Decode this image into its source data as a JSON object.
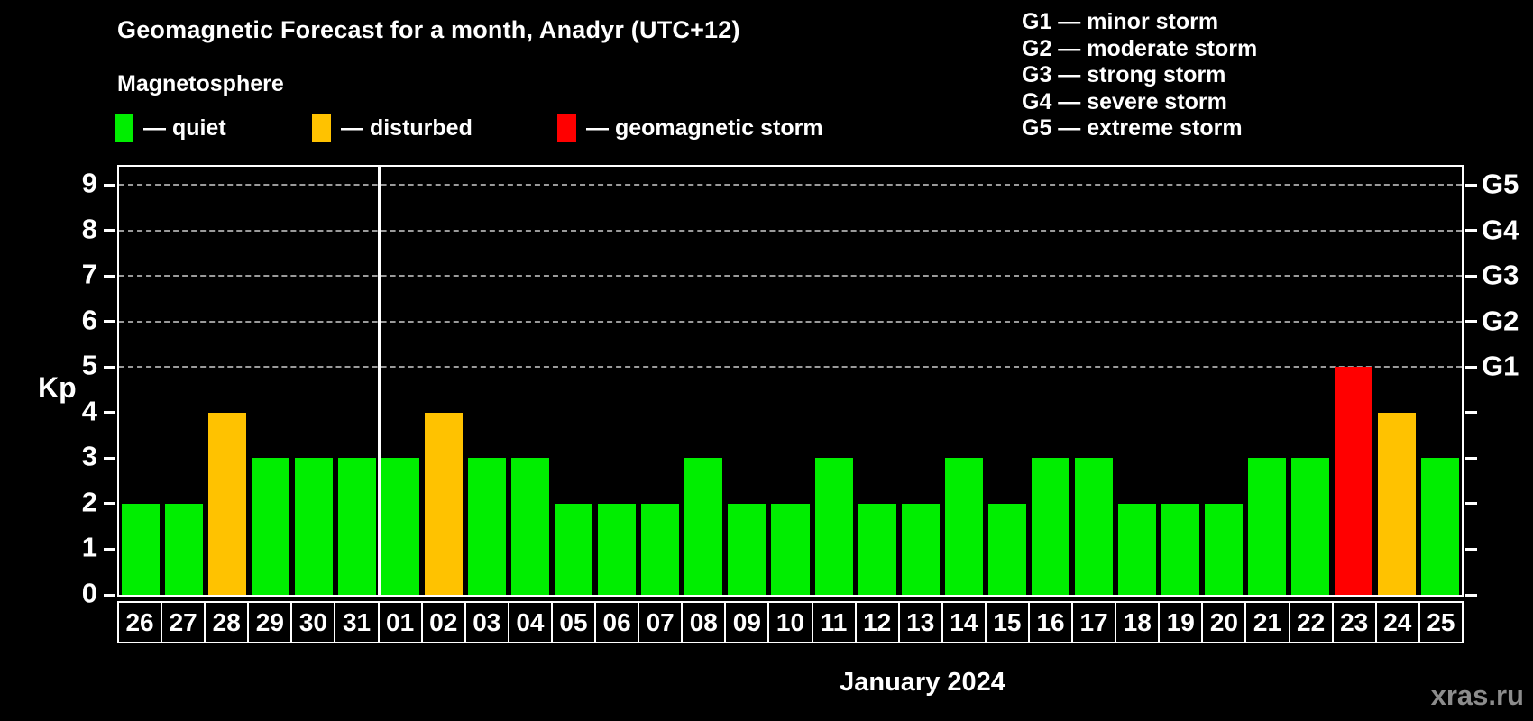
{
  "page": {
    "title": "Geomagnetic Forecast for a month, Anadyr (UTC+12)",
    "subtitle": "Magnetosphere",
    "watermark": "xras.ru"
  },
  "legend": {
    "items": [
      {
        "name": "quiet",
        "label": "— quiet",
        "color": "#00ee00"
      },
      {
        "name": "disturbed",
        "label": "— disturbed",
        "color": "#ffc200"
      },
      {
        "name": "storm",
        "label": "— geomagnetic storm",
        "color": "#ff0000"
      }
    ]
  },
  "g_scale_legend": {
    "lines": [
      "G1 — minor storm",
      "G2 — moderate storm",
      "G3 — strong storm",
      "G4 — severe storm",
      "G5 — extreme storm"
    ]
  },
  "chart_data": {
    "type": "bar",
    "title": "Geomagnetic Forecast for a month, Anadyr (UTC+12)",
    "subtitle": "Magnetosphere",
    "ylabel": "Kp",
    "xlabel": "January 2024",
    "ylim": [
      0,
      9.4
    ],
    "yticks": [
      0,
      1,
      2,
      3,
      4,
      5,
      6,
      7,
      8,
      9
    ],
    "gridline_kp": [
      5,
      6,
      7,
      8,
      9
    ],
    "grid_style": "dashed",
    "right_axis_labels": [
      {
        "label": "G1",
        "kp": 5
      },
      {
        "label": "G2",
        "kp": 6
      },
      {
        "label": "G3",
        "kp": 7
      },
      {
        "label": "G4",
        "kp": 8
      },
      {
        "label": "G5",
        "kp": 9
      }
    ],
    "categories": [
      "26",
      "27",
      "28",
      "29",
      "30",
      "31",
      "01",
      "02",
      "03",
      "04",
      "05",
      "06",
      "07",
      "08",
      "09",
      "10",
      "11",
      "12",
      "13",
      "14",
      "15",
      "16",
      "17",
      "18",
      "19",
      "20",
      "21",
      "22",
      "23",
      "24",
      "25"
    ],
    "values": [
      2,
      2,
      4,
      3,
      3,
      3,
      3,
      4,
      3,
      3,
      2,
      2,
      2,
      3,
      2,
      2,
      3,
      2,
      2,
      3,
      2,
      3,
      3,
      2,
      2,
      2,
      3,
      3,
      5,
      4,
      3
    ],
    "statuses": [
      "quiet",
      "quiet",
      "disturbed",
      "quiet",
      "quiet",
      "quiet",
      "quiet",
      "disturbed",
      "quiet",
      "quiet",
      "quiet",
      "quiet",
      "quiet",
      "quiet",
      "quiet",
      "quiet",
      "quiet",
      "quiet",
      "quiet",
      "quiet",
      "quiet",
      "quiet",
      "quiet",
      "quiet",
      "quiet",
      "quiet",
      "quiet",
      "quiet",
      "storm",
      "disturbed",
      "quiet"
    ],
    "status_colors": {
      "quiet": "#00ee00",
      "disturbed": "#ffc200",
      "storm": "#ff0000"
    },
    "month_separator_after_index": 5,
    "month_label": "January 2024",
    "legend_position": "top-left",
    "background": "#000000"
  }
}
